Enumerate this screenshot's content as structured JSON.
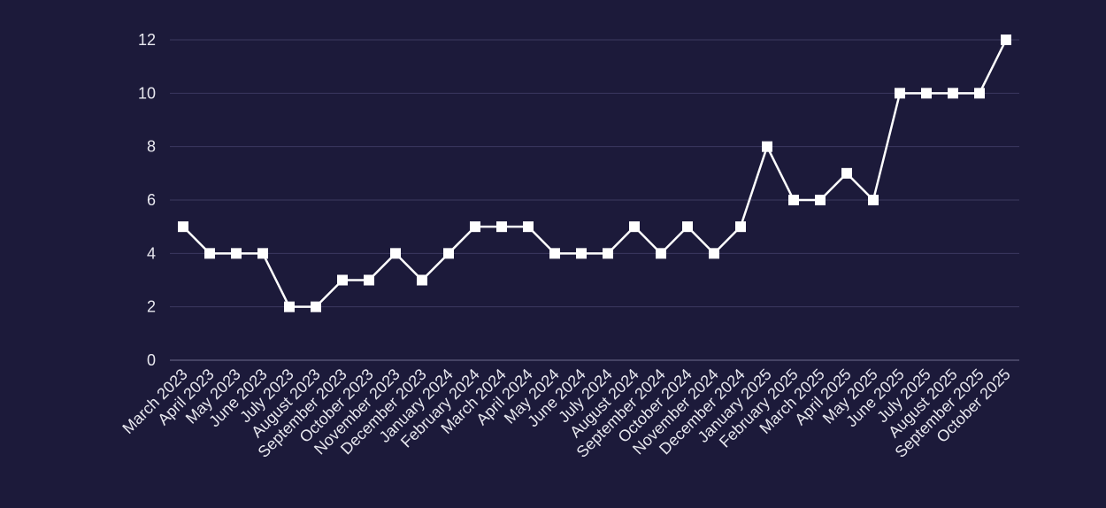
{
  "colors": {
    "background": "#1c1a3a",
    "gridline": "#3b3960",
    "axis": "#6e6c8e",
    "text": "#e8e8ef",
    "series": "#ffffff"
  },
  "chart_data": {
    "type": "line",
    "title": "",
    "xlabel": "",
    "ylabel": "",
    "ylim": [
      0,
      12
    ],
    "yticks": [
      0,
      2,
      4,
      6,
      8,
      10,
      12
    ],
    "grid": true,
    "legend": "none",
    "marker": "square",
    "categories": [
      "March 2023",
      "April 2023",
      "May 2023",
      "June 2023",
      "July 2023",
      "August 2023",
      "September 2023",
      "October 2023",
      "November 2023",
      "December 2023",
      "January 2024",
      "February 2024",
      "March 2024",
      "April 2024",
      "May 2024",
      "June 2024",
      "July 2024",
      "August 2024",
      "September 2024",
      "October 2024",
      "November 2024",
      "December 2024",
      "January 2025",
      "February 2025",
      "March 2025",
      "April 2025",
      "May 2025",
      "June 2025",
      "July 2025",
      "August 2025",
      "September 2025",
      "October 2025"
    ],
    "series": [
      {
        "values": [
          5,
          4,
          4,
          4,
          2,
          2,
          3,
          3,
          4,
          3,
          4,
          5,
          5,
          5,
          4,
          4,
          4,
          5,
          4,
          5,
          4,
          5,
          8,
          6,
          6,
          7,
          6,
          10,
          10,
          10,
          10,
          12
        ]
      }
    ]
  }
}
